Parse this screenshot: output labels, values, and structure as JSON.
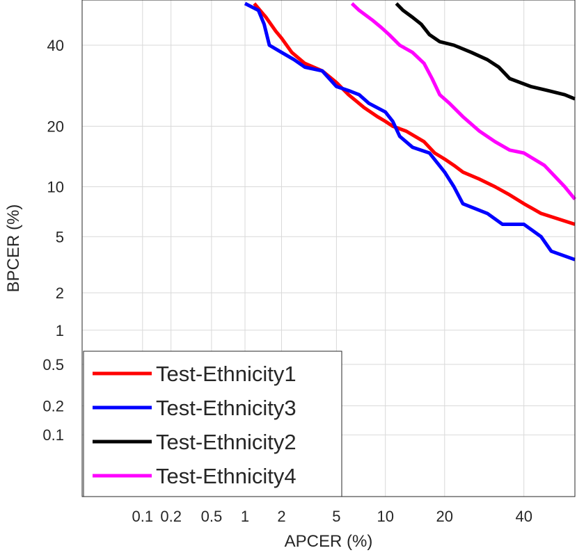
{
  "chart_data": {
    "type": "line",
    "title": "",
    "xlabel": "APCER (%)",
    "ylabel": "BPCER (%)",
    "xscale": "probit",
    "yscale": "probit",
    "xlim": [
      0.02,
      55
    ],
    "ylim": [
      0.02,
      53
    ],
    "grid": true,
    "xticks": [
      0.1,
      0.2,
      0.5,
      1,
      2,
      5,
      10,
      20,
      40
    ],
    "xtick_labels": [
      "0.1",
      "0.2",
      "0.5",
      "1",
      "2",
      "5",
      "10",
      "20",
      "40"
    ],
    "yticks": [
      0.1,
      0.2,
      0.5,
      1,
      2,
      5,
      10,
      20,
      40
    ],
    "ytick_labels": [
      "0.1",
      "0.2",
      "0.5",
      "1",
      "2",
      "5",
      "10",
      "20",
      "40"
    ],
    "legend_position": "bottom-left",
    "series": [
      {
        "name": "Test-Ethnicity1",
        "color": "#ff0000",
        "x": [
          1.2,
          1.5,
          1.8,
          2.0,
          2.4,
          3.0,
          4.0,
          5.0,
          6.0,
          7.5,
          9.0,
          10.0,
          11.0,
          13.0,
          16.0,
          18.0,
          20.0,
          22.0,
          24.0,
          28.0,
          32.0,
          36.0,
          40.0,
          45.0,
          55.0
        ],
        "y": [
          52,
          48,
          44,
          42,
          38,
          35,
          33,
          30,
          27,
          24,
          22,
          21,
          20,
          19,
          17,
          15,
          14,
          13,
          12,
          11,
          10,
          9,
          8,
          7,
          6
        ]
      },
      {
        "name": "Test-Ethnicity3",
        "color": "#0000ff",
        "x": [
          1.0,
          1.3,
          1.45,
          1.6,
          2.0,
          2.5,
          3.0,
          4.0,
          5.0,
          6.0,
          7.0,
          8.0,
          10.0,
          11.0,
          12.0,
          14.0,
          17.0,
          20.0,
          22.0,
          24.0,
          30.0,
          34.0,
          40.0,
          45.0,
          48.0,
          55.0
        ],
        "y": [
          52,
          50,
          46,
          40,
          38,
          36,
          34,
          33,
          29,
          28,
          27,
          25,
          23,
          21,
          18,
          16,
          15,
          12,
          10,
          8,
          7,
          6,
          6,
          5,
          4,
          3.5
        ]
      },
      {
        "name": "Test-Ethnicity2",
        "color": "#000000",
        "x": [
          11.5,
          12.5,
          14.0,
          15.5,
          17.0,
          19.0,
          22.0,
          26.0,
          30.0,
          33.0,
          36.0,
          42.0,
          47.0,
          52.0,
          55.0
        ],
        "y": [
          52,
          50,
          48,
          46,
          43,
          41,
          40,
          38,
          36,
          34,
          31,
          29,
          28,
          27,
          26
        ]
      },
      {
        "name": "Test-Ethnicity4",
        "color": "#ff00ff",
        "x": [
          6.3,
          7.0,
          8.5,
          9.5,
          10.5,
          12.0,
          14.0,
          16.0,
          17.5,
          19.0,
          21.0,
          24.0,
          28.0,
          32.0,
          36.0,
          40.0,
          46.0,
          52.0,
          55.0
        ],
        "y": [
          52,
          50,
          47,
          45,
          43,
          40,
          38,
          35,
          31,
          27,
          25,
          22,
          19,
          17,
          15.5,
          15,
          13,
          10,
          8.5
        ]
      }
    ]
  }
}
